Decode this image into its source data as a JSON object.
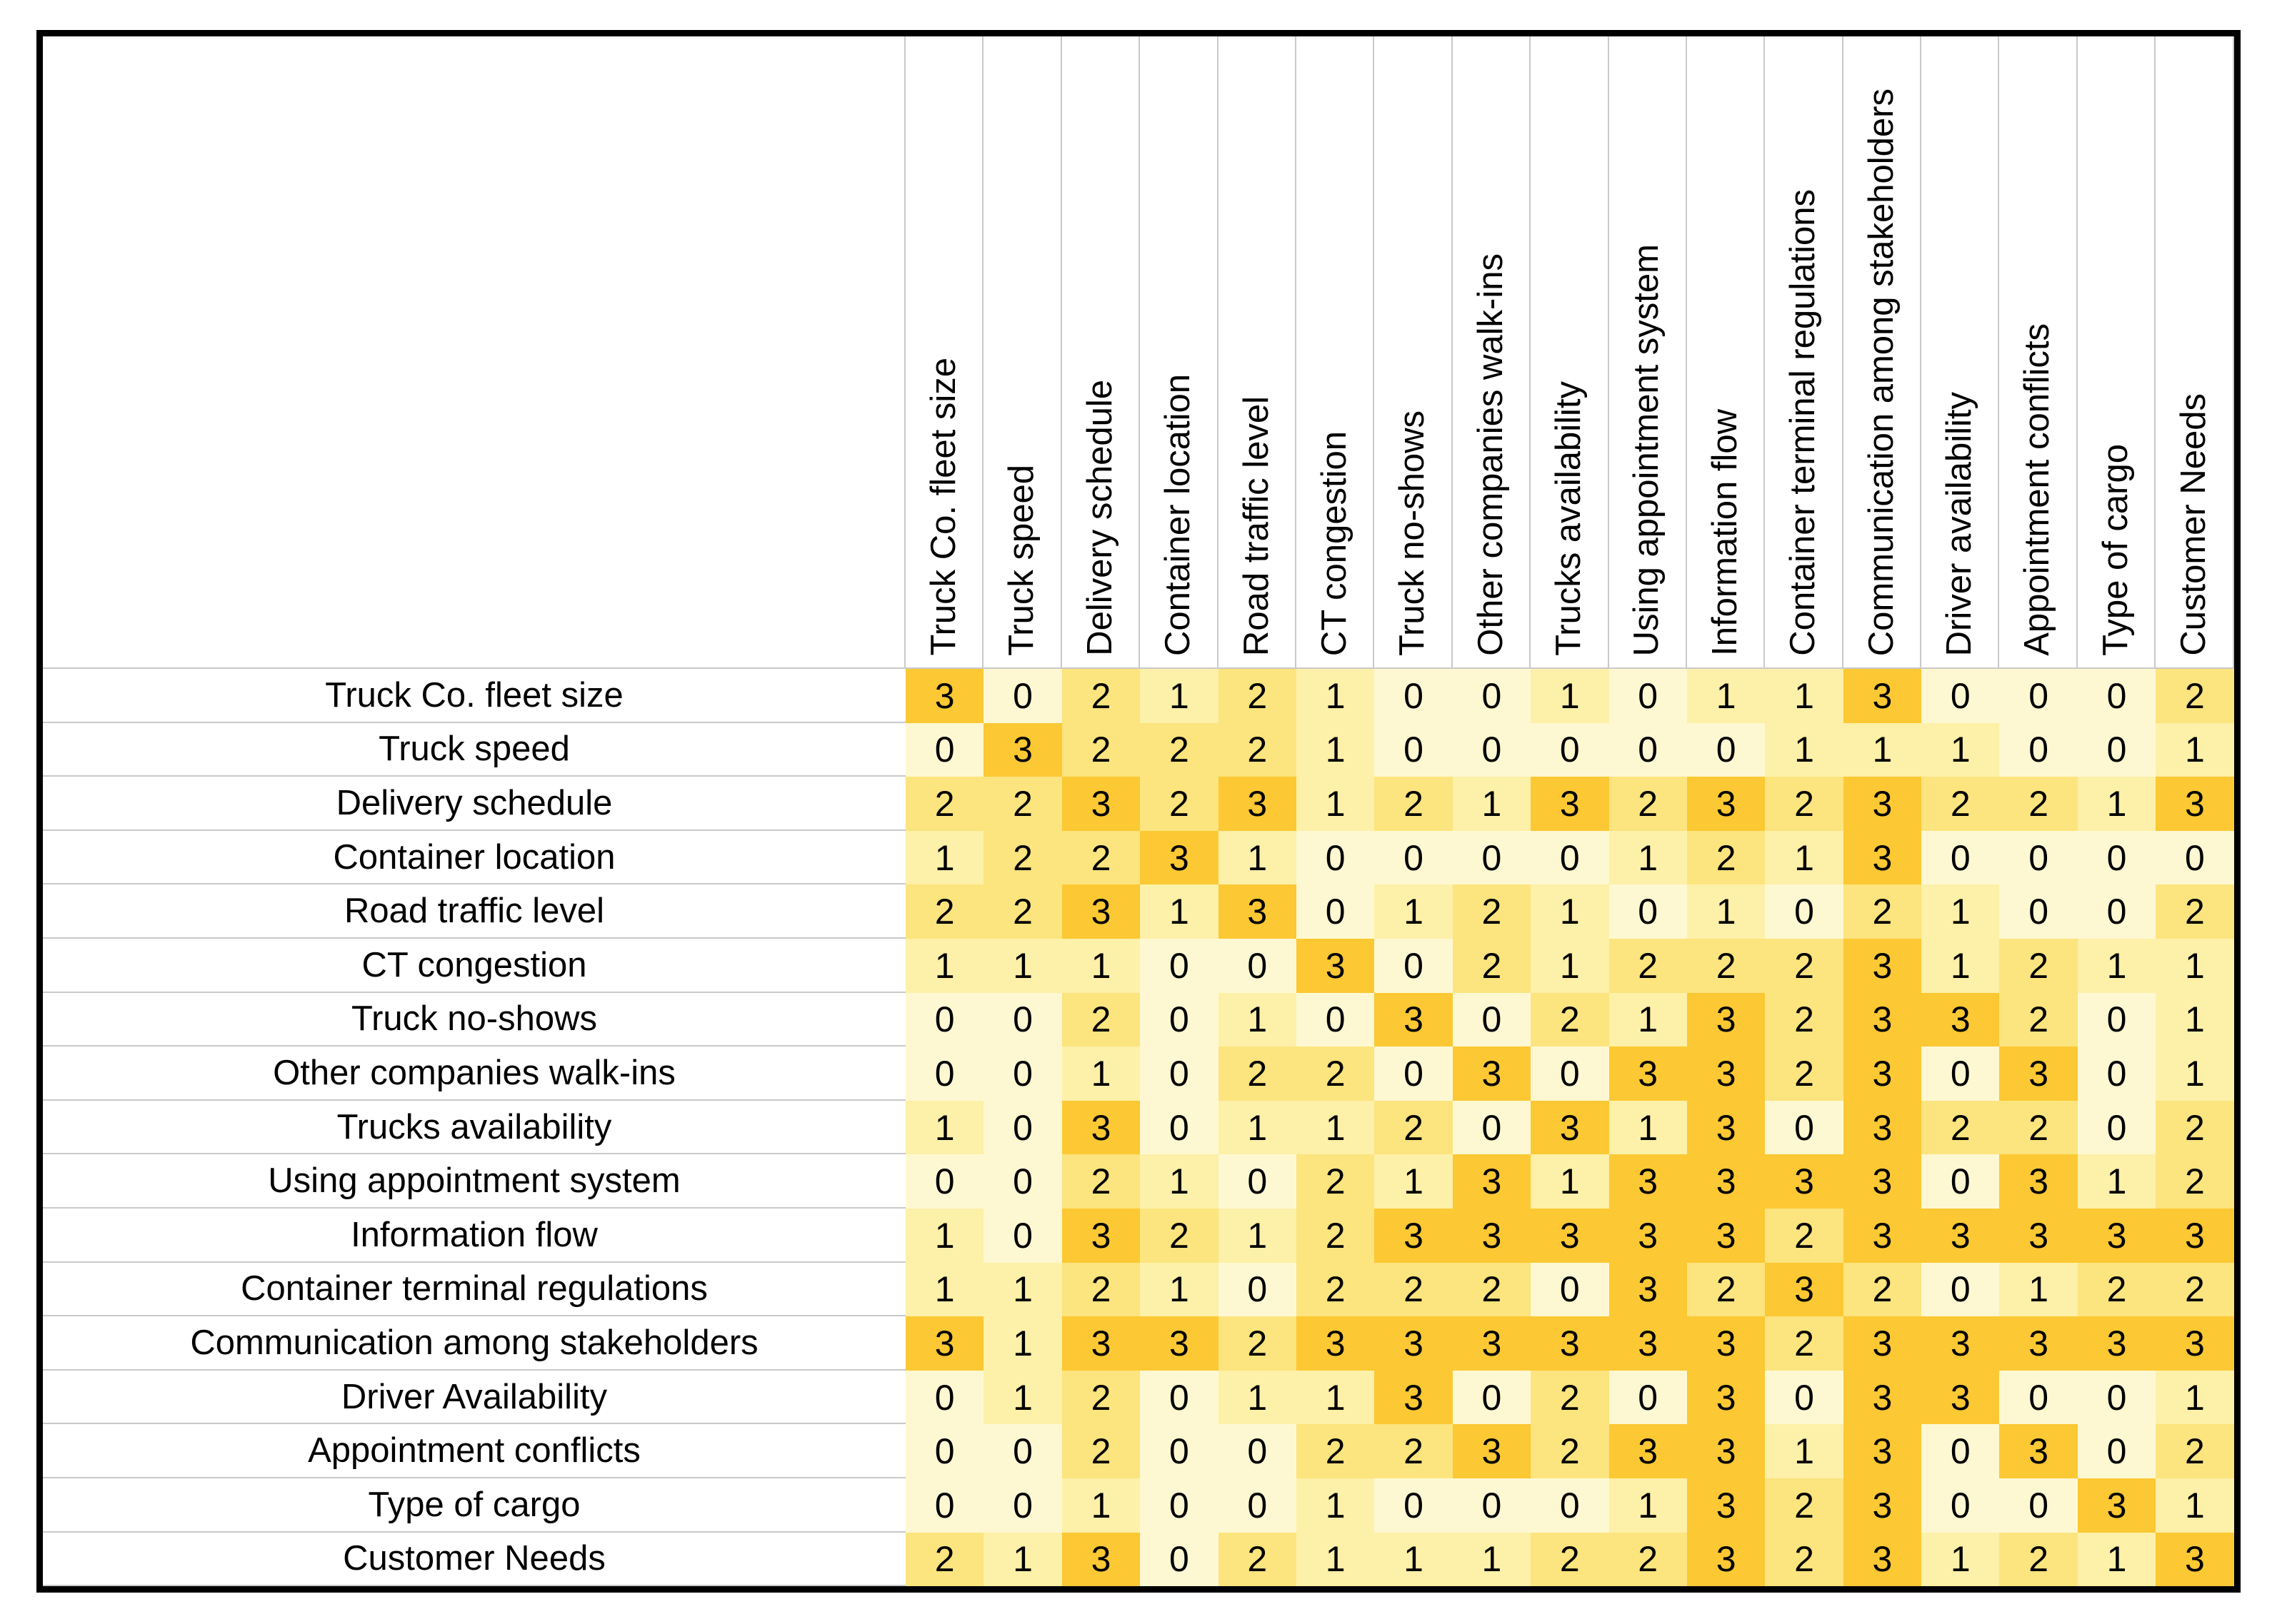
{
  "chart_data": {
    "type": "heatmap",
    "row_labels": [
      "Truck Co. fleet size",
      "Truck speed",
      "Delivery schedule",
      "Container location",
      "Road traffic level",
      "CT congestion",
      "Truck no-shows",
      "Other companies walk-ins",
      "Trucks availability",
      "Using appointment system",
      "Information flow",
      "Container terminal regulations",
      "Communication among stakeholders",
      "Driver Availability",
      "Appointment conflicts",
      "Type of cargo",
      "Customer Needs"
    ],
    "col_labels": [
      "Truck Co. fleet size",
      "Truck speed",
      "Delivery schedule",
      "Container location",
      "Road traffic level",
      "CT congestion",
      "Truck no-shows",
      "Other companies walk-ins",
      "Trucks availability",
      "Using appointment system",
      "Information flow",
      "Container terminal regulations",
      "Communication among stakeholders",
      "Driver availability",
      "Appointment conflicts",
      "Type of cargo",
      "Customer Needs"
    ],
    "values": [
      [
        3,
        0,
        2,
        1,
        2,
        1,
        0,
        0,
        1,
        0,
        1,
        1,
        3,
        0,
        0,
        0,
        2
      ],
      [
        0,
        3,
        2,
        2,
        2,
        1,
        0,
        0,
        0,
        0,
        0,
        1,
        1,
        1,
        0,
        0,
        1
      ],
      [
        2,
        2,
        3,
        2,
        3,
        1,
        2,
        1,
        3,
        2,
        3,
        2,
        3,
        2,
        2,
        1,
        3
      ],
      [
        1,
        2,
        2,
        3,
        1,
        0,
        0,
        0,
        0,
        1,
        2,
        1,
        3,
        0,
        0,
        0,
        0
      ],
      [
        2,
        2,
        3,
        1,
        3,
        0,
        1,
        2,
        1,
        0,
        1,
        0,
        2,
        1,
        0,
        0,
        2
      ],
      [
        1,
        1,
        1,
        0,
        0,
        3,
        0,
        2,
        1,
        2,
        2,
        2,
        3,
        1,
        2,
        1,
        1
      ],
      [
        0,
        0,
        2,
        0,
        1,
        0,
        3,
        0,
        2,
        1,
        3,
        2,
        3,
        3,
        2,
        0,
        1
      ],
      [
        0,
        0,
        1,
        0,
        2,
        2,
        0,
        3,
        0,
        3,
        3,
        2,
        3,
        0,
        3,
        0,
        1
      ],
      [
        1,
        0,
        3,
        0,
        1,
        1,
        2,
        0,
        3,
        1,
        3,
        0,
        3,
        2,
        2,
        0,
        2
      ],
      [
        0,
        0,
        2,
        1,
        0,
        2,
        1,
        3,
        1,
        3,
        3,
        3,
        3,
        0,
        3,
        1,
        2
      ],
      [
        1,
        0,
        3,
        2,
        1,
        2,
        3,
        3,
        3,
        3,
        3,
        2,
        3,
        3,
        3,
        3,
        3
      ],
      [
        1,
        1,
        2,
        1,
        0,
        2,
        2,
        2,
        0,
        3,
        2,
        3,
        2,
        0,
        1,
        2,
        2
      ],
      [
        3,
        1,
        3,
        3,
        2,
        3,
        3,
        3,
        3,
        3,
        3,
        2,
        3,
        3,
        3,
        3,
        3
      ],
      [
        0,
        1,
        2,
        0,
        1,
        1,
        3,
        0,
        2,
        0,
        3,
        0,
        3,
        3,
        0,
        0,
        1
      ],
      [
        0,
        0,
        2,
        0,
        0,
        2,
        2,
        3,
        2,
        3,
        3,
        1,
        3,
        0,
        3,
        0,
        2
      ],
      [
        0,
        0,
        1,
        0,
        0,
        1,
        0,
        0,
        0,
        1,
        3,
        2,
        3,
        0,
        0,
        3,
        1
      ],
      [
        2,
        1,
        3,
        0,
        2,
        1,
        1,
        1,
        2,
        2,
        3,
        2,
        3,
        1,
        2,
        1,
        3
      ]
    ],
    "value_scale": [
      0,
      3
    ],
    "value_colors": {
      "0": "#FEF8D2",
      "1": "#FDF0A8",
      "2": "#FCE47E",
      "3": "#FCC833"
    },
    "gridline_color": "#C9C9C9",
    "border_color": "#000000",
    "text_color": "#000000",
    "legend_position": "none",
    "title": ""
  }
}
